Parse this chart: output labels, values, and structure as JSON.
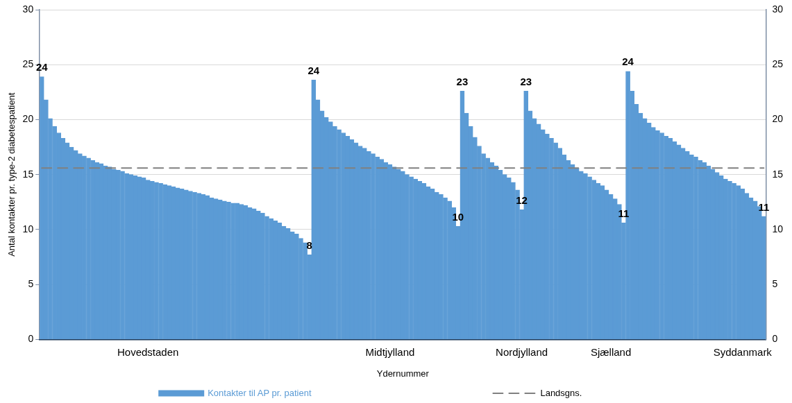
{
  "chart_data": {
    "type": "bar",
    "xlabel": "Ydernummer",
    "ylabel": "Antal kontakter pr. type-2 diabetespatient",
    "categories": [
      null,
      null,
      null,
      null,
      null,
      null,
      null,
      null,
      null,
      null,
      null,
      null,
      null,
      null,
      null,
      null,
      null,
      null,
      null,
      null,
      null,
      null,
      null,
      null,
      null,
      "Hovedstaden",
      null,
      null,
      null,
      null,
      null,
      null,
      null,
      null,
      null,
      null,
      null,
      null,
      null,
      null,
      null,
      null,
      null,
      null,
      null,
      null,
      null,
      null,
      null,
      null,
      null,
      null,
      null,
      null,
      null,
      null,
      null,
      null,
      null,
      null,
      null,
      null,
      null,
      null,
      null,
      null,
      null,
      null,
      null,
      null,
      null,
      null,
      null,
      null,
      null,
      null,
      null,
      null,
      null,
      null,
      null,
      null,
      "Midtjylland",
      null,
      null,
      null,
      null,
      null,
      null,
      null,
      null,
      null,
      null,
      null,
      null,
      null,
      null,
      null,
      null,
      null,
      null,
      null,
      null,
      null,
      null,
      null,
      null,
      null,
      null,
      null,
      null,
      null,
      null,
      "Nordjylland",
      null,
      null,
      null,
      null,
      null,
      null,
      null,
      null,
      null,
      null,
      null,
      null,
      null,
      null,
      null,
      null,
      null,
      null,
      null,
      null,
      "Sjælland",
      null,
      null,
      null,
      null,
      null,
      null,
      null,
      null,
      null,
      null,
      null,
      null,
      null,
      null,
      null,
      null,
      null,
      null,
      null,
      null,
      null,
      null,
      null,
      null,
      null,
      null,
      null,
      null,
      null,
      null,
      "Syddanmark",
      null,
      null,
      null,
      null,
      null
    ],
    "series": [
      {
        "name": "Kontakter til AP pr. patient",
        "color": "#5b9bd5",
        "values": [
          23.9,
          21.8,
          20.1,
          19.4,
          18.8,
          18.3,
          17.9,
          17.5,
          17.2,
          16.9,
          16.7,
          16.5,
          16.3,
          16.1,
          16.0,
          15.8,
          15.7,
          15.5,
          15.4,
          15.3,
          15.1,
          15.0,
          14.9,
          14.8,
          14.7,
          14.5,
          14.4,
          14.3,
          14.2,
          14.1,
          14.0,
          13.9,
          13.8,
          13.7,
          13.6,
          13.5,
          13.4,
          13.3,
          13.2,
          13.1,
          12.9,
          12.8,
          12.7,
          12.6,
          12.5,
          12.4,
          12.4,
          12.3,
          12.2,
          12.0,
          11.9,
          11.7,
          11.5,
          11.2,
          11.0,
          10.8,
          10.6,
          10.3,
          10.1,
          9.8,
          9.6,
          9.2,
          8.8,
          7.7,
          23.6,
          21.8,
          20.8,
          20.2,
          19.8,
          19.4,
          19.1,
          18.8,
          18.5,
          18.2,
          17.9,
          17.6,
          17.4,
          17.1,
          16.9,
          16.6,
          16.4,
          16.1,
          15.9,
          15.7,
          15.5,
          15.3,
          15.0,
          14.8,
          14.6,
          14.4,
          14.2,
          13.9,
          13.7,
          13.4,
          13.2,
          12.9,
          12.6,
          12.0,
          10.3,
          22.6,
          20.6,
          19.4,
          18.4,
          17.6,
          16.9,
          16.5,
          16.1,
          15.8,
          15.4,
          15.0,
          14.7,
          14.3,
          13.6,
          11.8,
          22.6,
          20.8,
          20.1,
          19.6,
          19.1,
          18.7,
          18.3,
          17.9,
          17.4,
          16.8,
          16.3,
          15.9,
          15.6,
          15.3,
          15.1,
          14.8,
          14.5,
          14.2,
          14.0,
          13.6,
          13.2,
          12.8,
          12.3,
          10.6,
          24.4,
          22.6,
          21.4,
          20.6,
          20.1,
          19.7,
          19.3,
          19.0,
          18.8,
          18.5,
          18.3,
          18.0,
          17.7,
          17.4,
          17.1,
          16.8,
          16.6,
          16.3,
          16.1,
          15.8,
          15.5,
          15.2,
          14.9,
          14.6,
          14.4,
          14.2,
          14.0,
          13.7,
          13.3,
          12.9,
          12.6,
          12.1,
          11.2
        ],
        "value_labels": [
          "24",
          null,
          null,
          null,
          null,
          null,
          null,
          null,
          null,
          null,
          null,
          null,
          null,
          null,
          null,
          null,
          null,
          null,
          null,
          null,
          null,
          null,
          null,
          null,
          null,
          null,
          null,
          null,
          null,
          null,
          null,
          null,
          null,
          null,
          null,
          null,
          null,
          null,
          null,
          null,
          null,
          null,
          null,
          null,
          null,
          null,
          null,
          null,
          null,
          null,
          null,
          null,
          null,
          null,
          null,
          null,
          null,
          null,
          null,
          null,
          null,
          null,
          null,
          "8",
          "24",
          null,
          null,
          null,
          null,
          null,
          null,
          null,
          null,
          null,
          null,
          null,
          null,
          null,
          null,
          null,
          null,
          null,
          null,
          null,
          null,
          null,
          null,
          null,
          null,
          null,
          null,
          null,
          null,
          null,
          null,
          null,
          null,
          null,
          "10",
          "23",
          null,
          null,
          null,
          null,
          null,
          null,
          null,
          null,
          null,
          null,
          null,
          null,
          null,
          "12",
          "23",
          null,
          null,
          null,
          null,
          null,
          null,
          null,
          null,
          null,
          null,
          null,
          null,
          null,
          null,
          null,
          null,
          null,
          null,
          null,
          null,
          null,
          null,
          "11",
          "24",
          null,
          null,
          null,
          null,
          null,
          null,
          null,
          null,
          null,
          null,
          null,
          null,
          null,
          null,
          null,
          null,
          null,
          null,
          null,
          null,
          null,
          null,
          null,
          null,
          null,
          null,
          null,
          null,
          null,
          null,
          null,
          "11"
        ]
      },
      {
        "name": "Landsgns.",
        "type": "line",
        "color": "#808080",
        "marker": "none",
        "line_style": "dashed",
        "values": [
          15.6,
          15.6,
          15.6,
          15.6,
          15.6,
          15.6,
          15.6,
          15.6,
          15.6,
          15.6,
          15.6,
          15.6,
          15.6,
          15.6,
          15.6,
          15.6,
          15.6,
          15.6,
          15.6,
          15.6,
          15.6,
          15.6,
          15.6,
          15.6,
          15.6,
          15.6,
          15.6,
          15.6,
          15.6,
          15.6,
          15.6,
          15.6,
          15.6,
          15.6,
          15.6,
          15.6,
          15.6,
          15.6,
          15.6,
          15.6,
          15.6,
          15.6,
          15.6,
          15.6,
          15.6,
          15.6,
          15.6,
          15.6,
          15.6,
          15.6,
          15.6,
          15.6,
          15.6,
          15.6,
          15.6,
          15.6,
          15.6,
          15.6,
          15.6,
          15.6,
          15.6,
          15.6,
          15.6,
          15.6,
          15.6,
          15.6,
          15.6,
          15.6,
          15.6,
          15.6,
          15.6,
          15.6,
          15.6,
          15.6,
          15.6,
          15.6,
          15.6,
          15.6,
          15.6,
          15.6,
          15.6,
          15.6,
          15.6,
          15.6,
          15.6,
          15.6,
          15.6,
          15.6,
          15.6,
          15.6,
          15.6,
          15.6,
          15.6,
          15.6,
          15.6,
          15.6,
          15.6,
          15.6,
          15.6,
          15.6,
          15.6,
          15.6,
          15.6,
          15.6,
          15.6,
          15.6,
          15.6,
          15.6,
          15.6,
          15.6,
          15.6,
          15.6,
          15.6,
          15.6,
          15.6,
          15.6,
          15.6,
          15.6,
          15.6,
          15.6,
          15.6,
          15.6,
          15.6,
          15.6,
          15.6,
          15.6,
          15.6,
          15.6,
          15.6,
          15.6,
          15.6,
          15.6,
          15.6,
          15.6,
          15.6,
          15.6,
          15.6,
          15.6,
          15.6,
          15.6,
          15.6,
          15.6,
          15.6,
          15.6,
          15.6,
          15.6,
          15.6,
          15.6,
          15.6,
          15.6,
          15.6,
          15.6,
          15.6,
          15.6,
          15.6,
          15.6,
          15.6,
          15.6,
          15.6,
          15.6,
          15.6,
          15.6,
          15.6,
          15.6,
          15.6,
          15.6,
          15.6,
          15.6,
          15.6,
          15.6,
          15.6
        ]
      }
    ],
    "ylim": [
      0,
      30
    ],
    "yticks": [
      0,
      5,
      10,
      15,
      20,
      25,
      30
    ],
    "y2lim": [
      0,
      30
    ],
    "y2ticks": [
      0,
      5,
      10,
      15,
      20,
      25,
      30
    ],
    "grid": "y",
    "legend": "bottom"
  }
}
